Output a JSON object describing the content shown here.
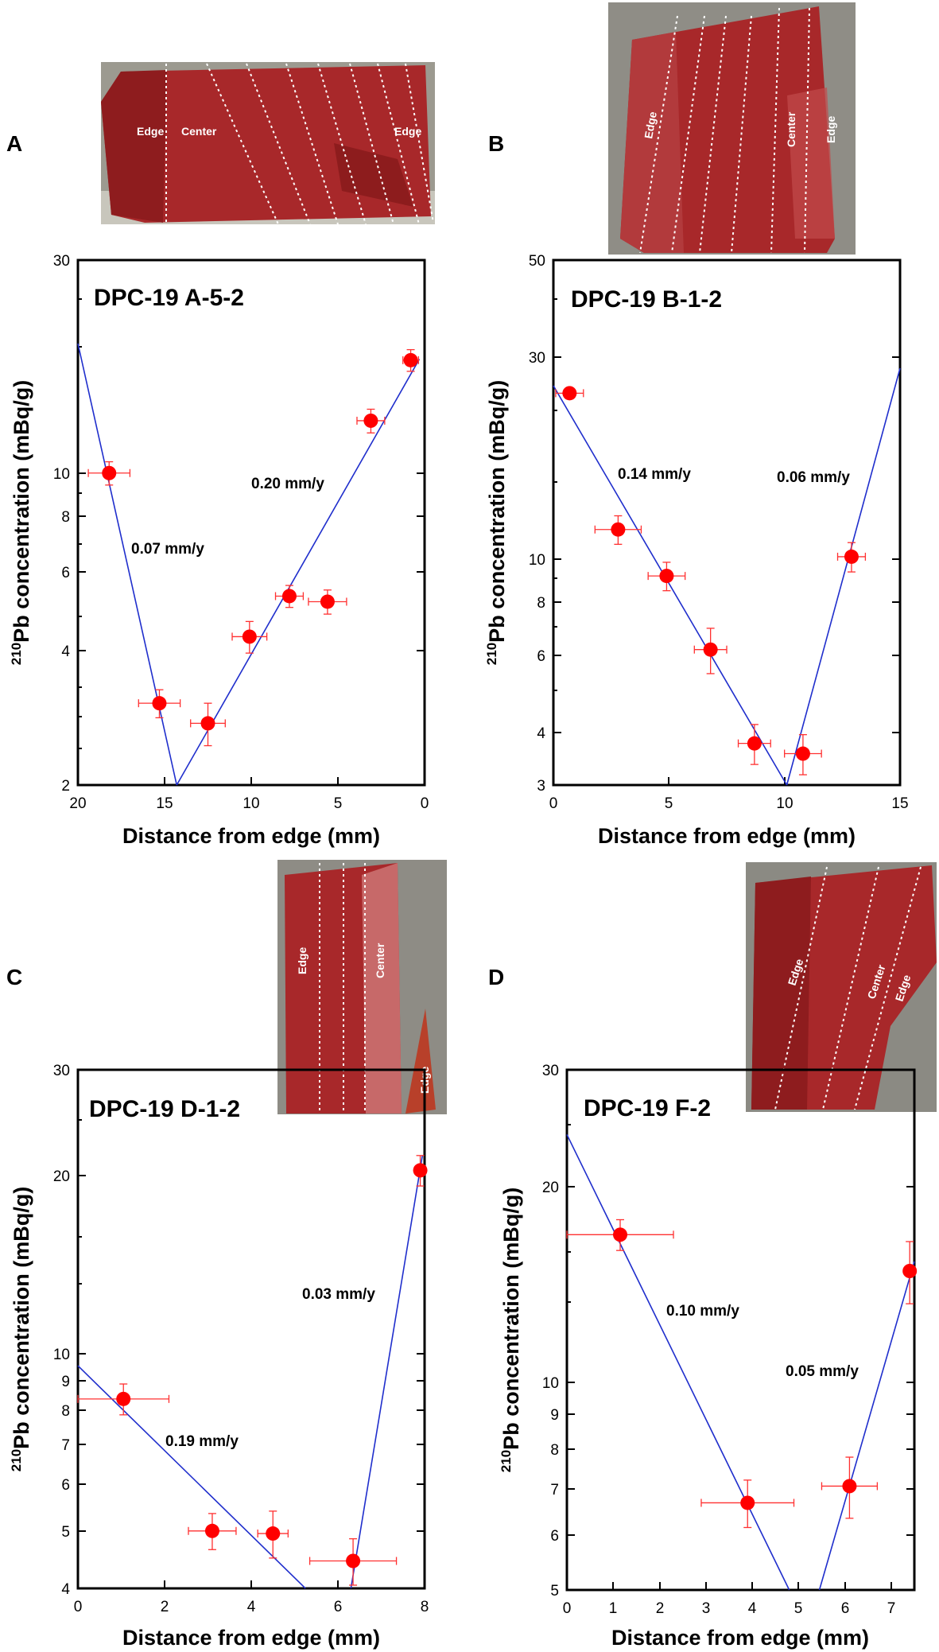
{
  "colors": {
    "fit_line": "#1f2ecc",
    "points": "#ff0000",
    "error_bars": "#ff3030",
    "frame": "#000000",
    "tissue": "#a8282a",
    "tissue_dark": "#7c1416",
    "photo_bg": "#8a8a80"
  },
  "chart_data": [
    {
      "panel": "A",
      "type": "scatter",
      "title": "DPC-19 A-5-2",
      "xlabel": "Distance from edge (mm)",
      "ylabel_sup": "210",
      "ylabel_main": "Pb concentration (mBq/g)",
      "xlim": [
        20,
        0
      ],
      "ylim": [
        2,
        30
      ],
      "yscale": "log",
      "xticks": [
        20,
        15,
        10,
        5,
        0
      ],
      "yticks": [
        2,
        4,
        6,
        8,
        10,
        30
      ],
      "points": [
        {
          "x": 18.2,
          "y": 10.0,
          "xerr": 1.2,
          "yerr": 0.6
        },
        {
          "x": 15.3,
          "y": 3.05,
          "xerr": 1.2,
          "yerr": 0.22
        },
        {
          "x": 12.5,
          "y": 2.75,
          "xerr": 1.0,
          "yerr": 0.3
        },
        {
          "x": 10.1,
          "y": 4.3,
          "xerr": 1.0,
          "yerr": 0.35
        },
        {
          "x": 7.8,
          "y": 5.3,
          "xerr": 0.8,
          "yerr": 0.3
        },
        {
          "x": 5.6,
          "y": 5.15,
          "xerr": 1.1,
          "yerr": 0.32
        },
        {
          "x": 3.1,
          "y": 13.1,
          "xerr": 0.8,
          "yerr": 0.8
        },
        {
          "x": 0.8,
          "y": 17.9,
          "xerr": 0.45,
          "yerr": 1.0
        }
      ],
      "fit_lines": [
        {
          "from": [
            20,
            19.5
          ],
          "to": [
            14.3,
            2.0
          ],
          "label": "0.07 mm/y"
        },
        {
          "from": [
            14.3,
            2.0
          ],
          "to": [
            0.3,
            18.0
          ],
          "label": "0.20 mm/y"
        }
      ],
      "photo_labels": [
        "Edge",
        "Center",
        "Edge"
      ]
    },
    {
      "panel": "B",
      "type": "scatter",
      "title": "DPC-19 B-1-2",
      "xlabel": "Distance from edge (mm)",
      "ylabel_sup": "210",
      "ylabel_main": "Pb concentration (mBq/g)",
      "xlim": [
        0,
        15
      ],
      "ylim": [
        3,
        50
      ],
      "yscale": "log",
      "xticks": [
        0,
        5,
        10,
        15
      ],
      "yticks": [
        3,
        4,
        6,
        8,
        10,
        30,
        50
      ],
      "points": [
        {
          "x": 0.7,
          "y": 24.5,
          "xerr": 0.6,
          "yerr": 0.0
        },
        {
          "x": 2.8,
          "y": 11.8,
          "xerr": 1.0,
          "yerr": 0.9
        },
        {
          "x": 4.9,
          "y": 9.2,
          "xerr": 0.8,
          "yerr": 0.7
        },
        {
          "x": 6.8,
          "y": 6.2,
          "xerr": 0.7,
          "yerr": 0.75
        },
        {
          "x": 8.7,
          "y": 3.75,
          "xerr": 0.7,
          "yerr": 0.4
        },
        {
          "x": 10.8,
          "y": 3.55,
          "xerr": 0.8,
          "yerr": 0.38
        },
        {
          "x": 12.9,
          "y": 10.2,
          "xerr": 0.6,
          "yerr": 0.8
        }
      ],
      "fit_lines": [
        {
          "from": [
            0,
            25.5
          ],
          "to": [
            10.1,
            3.0
          ],
          "label": "0.14 mm/y"
        },
        {
          "from": [
            10.1,
            3.0
          ],
          "to": [
            15,
            28.0
          ],
          "label": "0.06 mm/y"
        }
      ],
      "photo_labels": [
        "Edge",
        "Center",
        "Edge"
      ]
    },
    {
      "panel": "C",
      "type": "scatter",
      "title": "DPC-19 D-1-2",
      "xlabel": "Distance from edge (mm)",
      "ylabel_sup": "210",
      "ylabel_main": "Pb concentration (mBq/g)",
      "xlim": [
        0,
        8
      ],
      "ylim": [
        4,
        30
      ],
      "yscale": "log",
      "xticks": [
        0,
        2,
        4,
        6,
        8
      ],
      "yticks": [
        4,
        5,
        6,
        7,
        8,
        9,
        10,
        20,
        30
      ],
      "points": [
        {
          "x": 1.05,
          "y": 8.35,
          "xerr": 1.05,
          "yerr": 0.5
        },
        {
          "x": 3.1,
          "y": 5.0,
          "xerr": 0.55,
          "yerr": 0.35
        },
        {
          "x": 4.5,
          "y": 4.95,
          "xerr": 0.35,
          "yerr": 0.45
        },
        {
          "x": 6.35,
          "y": 4.45,
          "xerr": 1.0,
          "yerr": 0.4
        },
        {
          "x": 7.9,
          "y": 20.3,
          "xerr": 0.08,
          "yerr": 1.2
        }
      ],
      "fit_lines": [
        {
          "from": [
            0,
            9.5
          ],
          "to": [
            5.25,
            4.0
          ],
          "label": "0.19 mm/y"
        },
        {
          "from": [
            6.3,
            4.0
          ],
          "to": [
            7.95,
            21.5
          ],
          "label": "0.03 mm/y"
        }
      ],
      "photo_labels": [
        "Edge",
        "Center",
        "Edge"
      ]
    },
    {
      "panel": "D",
      "type": "scatter",
      "title": "DPC-19 F-2",
      "xlabel": "Distance from edge (mm)",
      "ylabel_sup": "210",
      "ylabel_main": "Pb concentration (mBq/g)",
      "xlim": [
        0,
        7.5
      ],
      "ylim": [
        5,
        30
      ],
      "yscale": "log",
      "xticks": [
        0,
        1,
        2,
        3,
        4,
        5,
        6,
        7
      ],
      "yticks": [
        5,
        6,
        7,
        8,
        9,
        10,
        20,
        30
      ],
      "points": [
        {
          "x": 1.15,
          "y": 17.0,
          "xerr": 1.15,
          "yerr": 0.9
        },
        {
          "x": 3.9,
          "y": 6.75,
          "xerr": 1.0,
          "yerr": 0.55
        },
        {
          "x": 6.1,
          "y": 7.15,
          "xerr": 0.6,
          "yerr": 0.75
        },
        {
          "x": 7.4,
          "y": 15.0,
          "xerr": 0.0,
          "yerr": 1.6
        }
      ],
      "fit_lines": [
        {
          "from": [
            0,
            24.0
          ],
          "to": [
            4.8,
            5.0
          ],
          "label": "0.10 mm/y"
        },
        {
          "from": [
            5.45,
            5.0
          ],
          "to": [
            7.5,
            15.5
          ],
          "label": "0.05 mm/y"
        }
      ],
      "photo_labels": [
        "Edge",
        "Center",
        "Edge"
      ]
    }
  ]
}
